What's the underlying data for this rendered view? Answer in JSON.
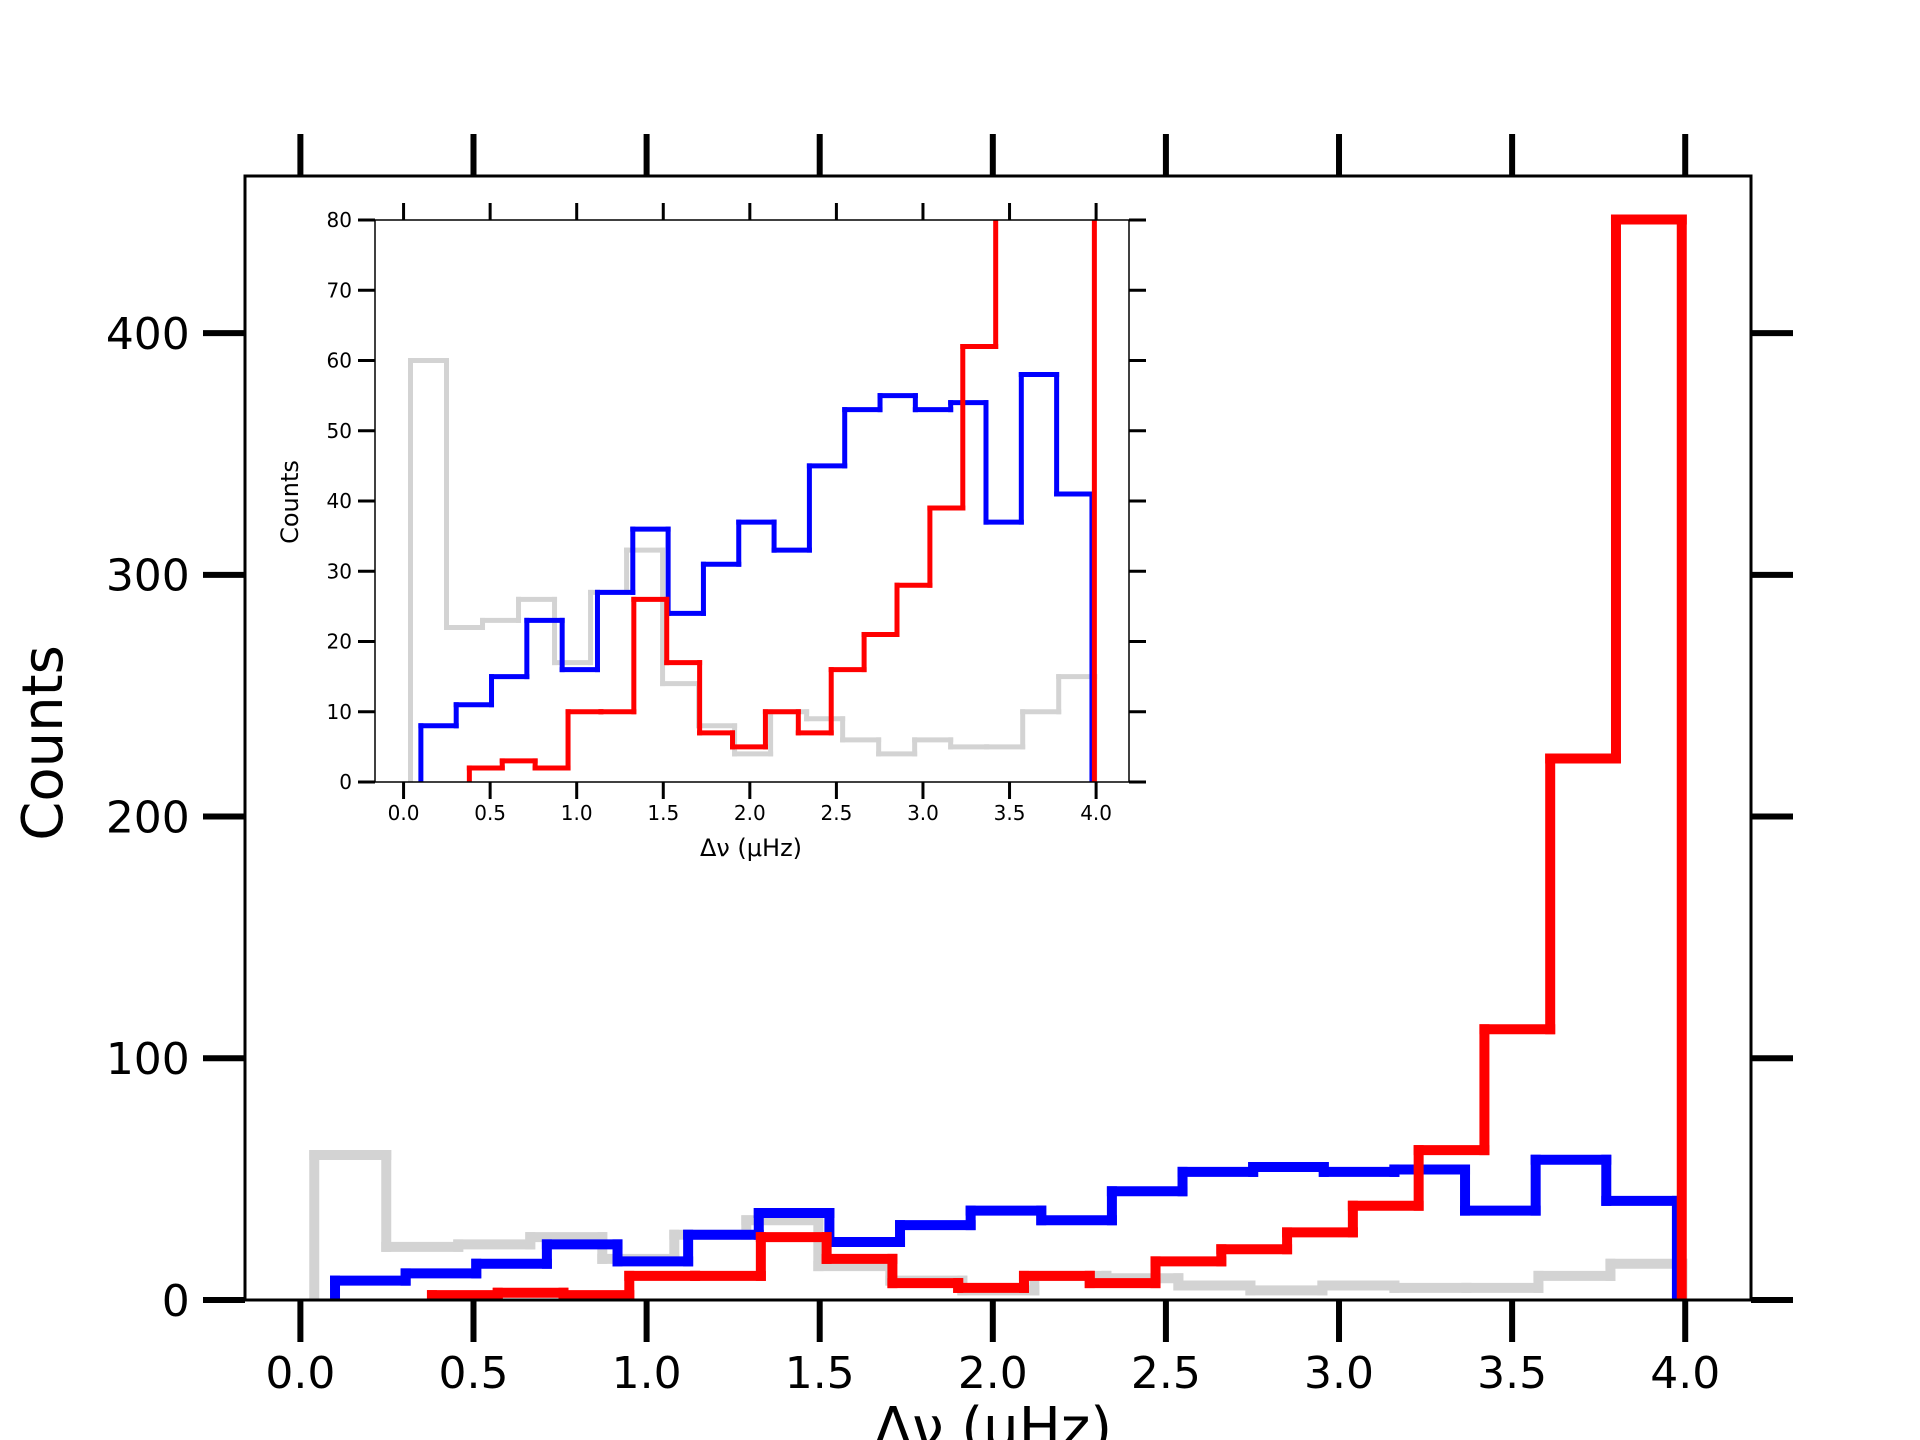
{
  "chart_data": {
    "type": "histogram",
    "xlabel": "Δν (μHz)",
    "ylabel": "Counts",
    "xlim": [
      -0.16,
      4.19
    ],
    "ylim": [
      0,
      465
    ],
    "xticks": [
      {
        "value": 0,
        "label": "0.0"
      },
      {
        "value": 0.5,
        "label": "0.5"
      },
      {
        "value": 1,
        "label": "1.0"
      },
      {
        "value": 1.5,
        "label": "1.5"
      },
      {
        "value": 2,
        "label": "2.0"
      },
      {
        "value": 2.5,
        "label": "2.5"
      },
      {
        "value": 3,
        "label": "3.0"
      },
      {
        "value": 3.5,
        "label": "3.5"
      },
      {
        "value": 4,
        "label": "4.0"
      }
    ],
    "yticks": [
      0,
      100,
      200,
      300,
      400
    ],
    "series": [
      {
        "color": "#d3d3d3",
        "bins": [
          0.04,
          0.248,
          0.456,
          0.664,
          0.872,
          1.08,
          1.288,
          1.496,
          1.704,
          1.912,
          2.12,
          2.328,
          2.536,
          2.744,
          2.952,
          3.16,
          3.368,
          3.576,
          3.784,
          3.992
        ],
        "values": [
          60,
          22,
          23,
          26,
          17,
          27,
          33,
          14,
          8,
          4,
          10,
          9,
          6,
          4,
          6,
          5,
          5,
          10,
          15
        ]
      },
      {
        "color": "#0000ff",
        "bins": [
          0.1,
          0.304,
          0.508,
          0.712,
          0.916,
          1.12,
          1.324,
          1.528,
          1.732,
          1.936,
          2.14,
          2.344,
          2.548,
          2.752,
          2.956,
          3.16,
          3.364,
          3.568,
          3.772,
          3.976
        ],
        "values": [
          8,
          11,
          15,
          23,
          16,
          27,
          36,
          24,
          31,
          37,
          33,
          45,
          53,
          55,
          53,
          54,
          37,
          58,
          41
        ]
      },
      {
        "color": "#ff0000",
        "bins": [
          0.38,
          0.57,
          0.76,
          0.95,
          1.14,
          1.33,
          1.52,
          1.71,
          1.9,
          2.09,
          2.28,
          2.47,
          2.66,
          2.85,
          3.04,
          3.23,
          3.42,
          3.61,
          3.8,
          3.99
        ],
        "values": [
          2,
          3,
          2,
          10,
          10,
          26,
          17,
          7,
          5,
          10,
          7,
          16,
          21,
          28,
          39,
          62,
          112,
          224,
          447
        ]
      }
    ],
    "inset": {
      "xlabel": "Δν (μHz)",
      "ylabel": "Counts",
      "xlim": [
        -0.165,
        4.19
      ],
      "ylim": [
        0,
        80
      ],
      "xticks": [
        {
          "value": 0,
          "label": "0.0"
        },
        {
          "value": 0.5,
          "label": "0.5"
        },
        {
          "value": 1,
          "label": "1.0"
        },
        {
          "value": 1.5,
          "label": "1.5"
        },
        {
          "value": 2,
          "label": "2.0"
        },
        {
          "value": 2.5,
          "label": "2.5"
        },
        {
          "value": 3,
          "label": "3.0"
        },
        {
          "value": 3.5,
          "label": "3.5"
        },
        {
          "value": 4,
          "label": "4.0"
        }
      ],
      "yticks": [
        0,
        10,
        20,
        30,
        40,
        50,
        60,
        70,
        80
      ]
    }
  }
}
